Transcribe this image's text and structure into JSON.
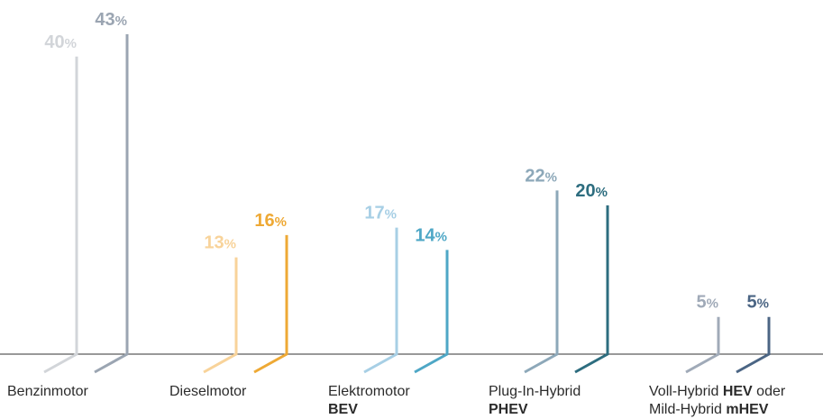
{
  "chart_data": {
    "type": "bar",
    "title": "",
    "xlabel": "",
    "ylabel": "",
    "ylim": [
      0,
      43
    ],
    "grid": false,
    "legend": "none",
    "categories": [
      {
        "name": "Benzinmotor",
        "line1": "Benzinmotor",
        "line2": ""
      },
      {
        "name": "Dieselmotor",
        "line1": "Dieselmotor",
        "line2": ""
      },
      {
        "name": "Elektromotor BEV",
        "line1": "Elektromotor",
        "line2": "BEV"
      },
      {
        "name": "Plug-In-Hybrid PHEV",
        "line1": "Plug-In-Hybrid",
        "line2": "PHEV"
      },
      {
        "name": "Voll-Hybrid HEV oder Mild-Hybrid mHEV",
        "line1_pre": "Voll-Hybrid ",
        "line1_bold": "HEV",
        "line1_post": " oder",
        "line2_pre": "Mild-Hybrid ",
        "line2_bold": "mHEV"
      }
    ],
    "series": [
      {
        "values": [
          40,
          13,
          17,
          22,
          5
        ],
        "colors": [
          "#d2d5d9",
          "#f8d39a",
          "#a7cfe5",
          "#8da8b9",
          "#a0aab8"
        ]
      },
      {
        "values": [
          43,
          16,
          14,
          20,
          5
        ],
        "colors": [
          "#9ba5b2",
          "#eea935",
          "#4ea7c6",
          "#2d6d7f",
          "#4b6584"
        ]
      }
    ],
    "value_suffix": "%"
  }
}
